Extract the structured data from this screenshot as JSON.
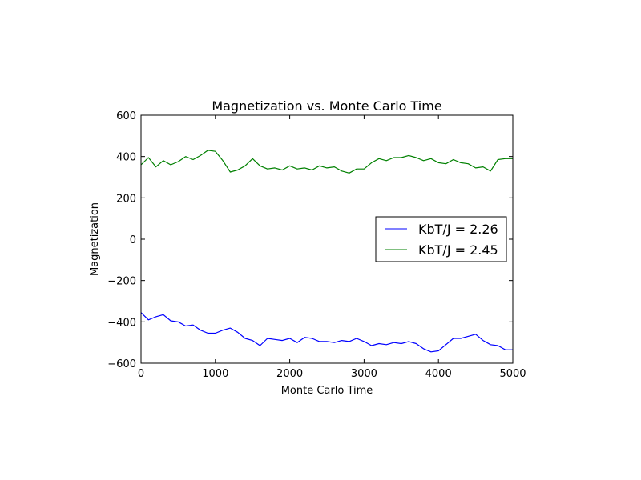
{
  "chart_data": {
    "type": "line",
    "title": "Magnetization vs. Monte Carlo Time",
    "xlabel": "Monte Carlo Time",
    "ylabel": "Magnetization",
    "xlim": [
      0,
      5000
    ],
    "ylim": [
      -600,
      600
    ],
    "xticks": [
      0,
      1000,
      2000,
      3000,
      4000,
      5000
    ],
    "yticks": [
      -600,
      -400,
      -200,
      0,
      200,
      400,
      600
    ],
    "xtick_labels": [
      "0",
      "1000",
      "2000",
      "3000",
      "4000",
      "5000"
    ],
    "ytick_labels": [
      "−600",
      "−400",
      "−200",
      "0",
      "200",
      "400",
      "600"
    ],
    "grid": false,
    "legend_position": "center-right",
    "series": [
      {
        "name": "KbT/J = 2.26",
        "color": "#0000ff",
        "x": [
          0,
          100,
          200,
          300,
          400,
          500,
          600,
          700,
          800,
          900,
          1000,
          1100,
          1200,
          1300,
          1400,
          1500,
          1600,
          1700,
          1800,
          1900,
          2000,
          2100,
          2200,
          2300,
          2400,
          2500,
          2600,
          2700,
          2800,
          2900,
          3000,
          3100,
          3200,
          3300,
          3400,
          3500,
          3600,
          3700,
          3800,
          3900,
          4000,
          4100,
          4200,
          4300,
          4400,
          4500,
          4600,
          4700,
          4800,
          4900,
          5000
        ],
        "y": [
          -355,
          -390,
          -375,
          -365,
          -395,
          -400,
          -420,
          -415,
          -440,
          -455,
          -455,
          -440,
          -430,
          -450,
          -480,
          -490,
          -515,
          -480,
          -485,
          -490,
          -480,
          -500,
          -475,
          -480,
          -495,
          -495,
          -500,
          -490,
          -495,
          -480,
          -495,
          -515,
          -505,
          -510,
          -500,
          -505,
          -495,
          -505,
          -530,
          -545,
          -540,
          -510,
          -480,
          -480,
          -470,
          -460,
          -490,
          -510,
          -515,
          -535,
          -535
        ]
      },
      {
        "name": "KbT/J = 2.45",
        "color": "#008000",
        "x": [
          0,
          100,
          200,
          300,
          400,
          500,
          600,
          700,
          800,
          900,
          1000,
          1100,
          1200,
          1300,
          1400,
          1500,
          1600,
          1700,
          1800,
          1900,
          2000,
          2100,
          2200,
          2300,
          2400,
          2500,
          2600,
          2700,
          2800,
          2900,
          3000,
          3100,
          3200,
          3300,
          3400,
          3500,
          3600,
          3700,
          3800,
          3900,
          4000,
          4100,
          4200,
          4300,
          4400,
          4500,
          4600,
          4700,
          4800,
          4900,
          5000
        ],
        "y": [
          360,
          395,
          350,
          380,
          360,
          375,
          400,
          385,
          405,
          430,
          425,
          380,
          325,
          335,
          355,
          390,
          355,
          340,
          345,
          335,
          355,
          340,
          345,
          335,
          355,
          345,
          350,
          330,
          320,
          340,
          340,
          370,
          390,
          380,
          395,
          395,
          405,
          395,
          380,
          390,
          370,
          365,
          385,
          370,
          365,
          345,
          350,
          330,
          385,
          390,
          390
        ]
      }
    ]
  }
}
